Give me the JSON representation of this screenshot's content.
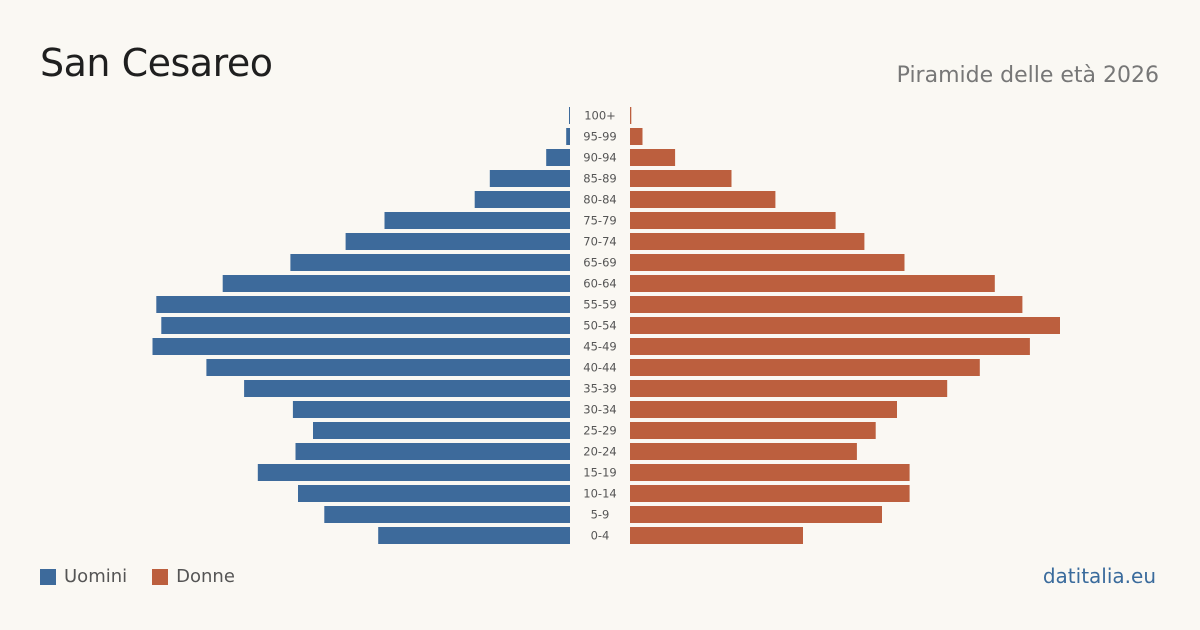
{
  "header": {
    "title": "San Cesareo",
    "subtitle": "Piramide delle età 2026"
  },
  "legend": {
    "men_label": "Uomini",
    "women_label": "Donne"
  },
  "brand": "datitalia.eu",
  "colors": {
    "men": "#3d6a9b",
    "women": "#bc5f3e",
    "background": "#faf8f3"
  },
  "chart_data": {
    "type": "bar",
    "orientation": "horizontal-pyramid",
    "categories": [
      "100+",
      "95-99",
      "90-94",
      "85-89",
      "80-84",
      "75-79",
      "70-74",
      "65-69",
      "60-64",
      "55-59",
      "50-54",
      "45-49",
      "40-44",
      "35-39",
      "30-34",
      "25-29",
      "20-24",
      "15-19",
      "10-14",
      "5-9",
      "0-4"
    ],
    "series": [
      {
        "name": "Uomini",
        "values": [
          0,
          3,
          19,
          64,
          76,
          148,
          179,
          223,
          277,
          330,
          326,
          333,
          290,
          260,
          221,
          205,
          219,
          249,
          217,
          196,
          153
        ]
      },
      {
        "name": "Donne",
        "values": [
          1,
          10,
          36,
          81,
          116,
          164,
          187,
          219,
          291,
          313,
          343,
          319,
          279,
          253,
          213,
          196,
          181,
          223,
          223,
          201,
          138
        ]
      }
    ],
    "xlim": [
      0,
      343
    ],
    "grid": false,
    "legend_position": "bottom-left"
  }
}
